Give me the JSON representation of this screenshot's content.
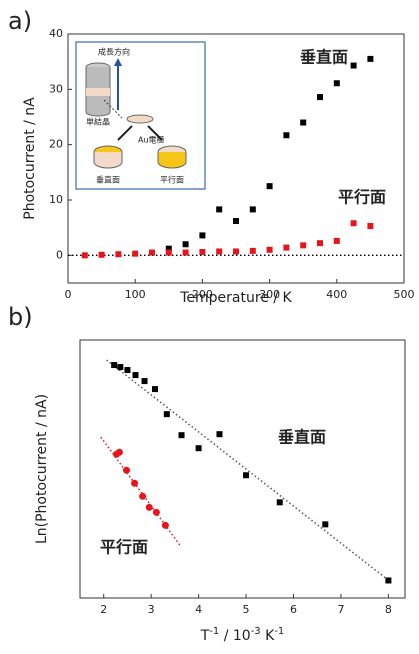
{
  "chart_data": [
    {
      "type": "scatter",
      "panel_label": "a)",
      "xlabel": "Temperature / K",
      "ylabel": "Photocurrent / nA",
      "xlim": [
        0,
        500
      ],
      "xticks": [
        0,
        100,
        200,
        300,
        400,
        500
      ],
      "ylim": [
        -5,
        40
      ],
      "yticks": [
        0,
        10,
        20,
        30,
        40
      ],
      "zero_line": 0,
      "series": [
        {
          "color": "#000000",
          "x": [
            150,
            175,
            200,
            225,
            250,
            275,
            300,
            325,
            350,
            375,
            400,
            425,
            450
          ],
          "values": [
            1.2,
            2.0,
            3.6,
            8.3,
            6.2,
            8.3,
            12.5,
            21.7,
            24.0,
            28.6,
            31.1,
            34.3,
            35.5
          ]
        },
        {
          "color": "#e8141c",
          "x": [
            25,
            50,
            75,
            100,
            125,
            150,
            175,
            200,
            225,
            250,
            275,
            300,
            325,
            350,
            375,
            400,
            425,
            450
          ],
          "values": [
            0,
            0.1,
            0.2,
            0.3,
            0.5,
            0.5,
            0.5,
            0.6,
            0.7,
            0.7,
            0.8,
            1.0,
            1.4,
            1.8,
            2.2,
            2.6,
            5.8,
            5.3
          ]
        }
      ],
      "annotations": [
        "垂直面",
        "平行面"
      ],
      "inset": {
        "growth": "成長方向",
        "crystal": "単結晶",
        "electrode": "Au電極",
        "perp": "垂直面",
        "para": "平行面"
      }
    },
    {
      "type": "scatter",
      "panel_label": "b)",
      "ylabel": "Ln(Photocurrent / nA)",
      "xlabel_parts": [
        [
          "T",
          "-1"
        ],
        [
          " / 10",
          "-3"
        ],
        [
          " K",
          "-1"
        ]
      ],
      "xlim": [
        1.5,
        8.35
      ],
      "xticks": [
        2,
        3,
        4,
        5,
        6,
        7,
        8
      ],
      "ylim": [
        -0.1,
        10.2
      ],
      "series": [
        {
          "color": "#000000",
          "x": [
            2.22,
            2.35,
            2.5,
            2.67,
            2.86,
            3.08,
            3.33,
            3.64,
            4.0,
            4.44,
            5.0,
            5.71,
            6.67,
            8.0
          ],
          "values": [
            9.2,
            9.12,
            9.0,
            8.8,
            8.56,
            8.24,
            7.24,
            6.4,
            5.88,
            6.44,
            4.8,
            3.72,
            2.84,
            0.6
          ]
        },
        {
          "color": "#e8141c",
          "x": [
            2.27,
            2.33,
            2.48,
            2.65,
            2.82,
            2.96,
            3.11,
            3.3
          ],
          "values": [
            5.64,
            5.72,
            5.0,
            4.48,
            3.96,
            3.52,
            3.32,
            2.8
          ]
        }
      ],
      "fit_lines": [
        {
          "color": "#555555",
          "x": [
            2.06,
            8.06
          ],
          "values": [
            9.4,
            0.52
          ]
        },
        {
          "color": "#e8141c",
          "x": [
            1.94,
            3.61
          ],
          "values": [
            6.32,
            2.0
          ]
        }
      ],
      "annotations": [
        "垂直面",
        "平行面"
      ]
    }
  ]
}
